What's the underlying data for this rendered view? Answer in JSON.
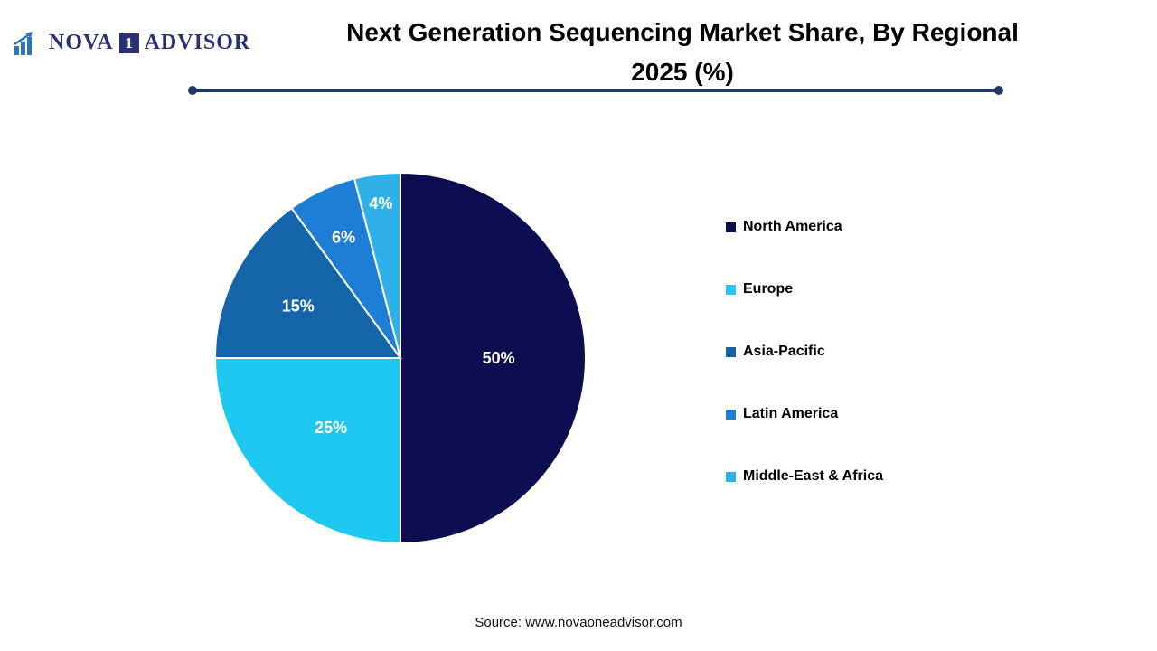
{
  "logo": {
    "part1": "NOVA",
    "badge": "1",
    "part2": "ADVISOR"
  },
  "title": {
    "line1": "Next Generation Sequencing Market Share, By Regional",
    "line2": "2025 (%)"
  },
  "source": "Source: www.novaoneadvisor.com",
  "accent": {
    "underline_color": "#1f3864",
    "slice_label_color": "#ffffff"
  },
  "chart_data": {
    "type": "pie",
    "title": "Next Generation Sequencing Market Share, By Regional 2025 (%)",
    "labels": [
      "North America",
      "Europe",
      "Asia-Pacific",
      "Latin America",
      "Middle-East & Africa"
    ],
    "values": [
      50,
      25,
      15,
      6,
      4
    ],
    "data_labels": [
      "50%",
      "25%",
      "15%",
      "6%",
      "4%"
    ],
    "unit": "%",
    "colors": [
      "#0d0d52",
      "#1fc8f0",
      "#1565ab",
      "#1e7ed6",
      "#2fb0e8"
    ],
    "start_angle_deg": 0,
    "direction": "clockwise",
    "legend_position": "right",
    "grid": false
  }
}
